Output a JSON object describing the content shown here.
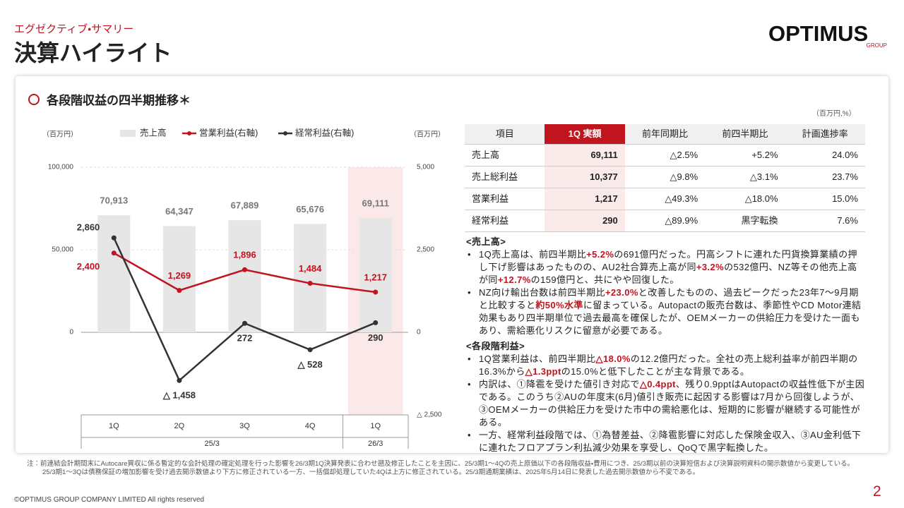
{
  "header": {
    "subtitle": "エグゼクティブ・サマリー",
    "title": "決算ハイライト"
  },
  "logo": {
    "name": "OPTIMUS",
    "group": "GROUP"
  },
  "chart_data": {
    "type": "combo",
    "title": "各段階収益の四半期推移＊",
    "y_label": "（百万円）",
    "y2_label": "（百万円）",
    "categories": [
      "1Q",
      "2Q",
      "3Q",
      "4Q",
      "1Q"
    ],
    "x_groups": [
      "25/3",
      "26/3"
    ],
    "ylim": [
      -50000,
      100000
    ],
    "yticks": [
      0,
      {
        "value": 50000,
        "label": "50,000"
      },
      {
        "value": 100000,
        "label": "100,000"
      }
    ],
    "y2lim": [
      -2500,
      5000
    ],
    "y2ticks": [
      {
        "value": -2500,
        "label": "△ 2,500"
      },
      0,
      {
        "value": 2500,
        "label": "2,500"
      },
      {
        "value": 5000,
        "label": "5,000"
      }
    ],
    "grid": true,
    "series": [
      {
        "name": "売上高",
        "type": "bar",
        "color": "#e6e6e6",
        "values": [
          70913,
          64347,
          67889,
          65676,
          69111
        ],
        "value_labels": [
          "70,913",
          "64,347",
          "67,889",
          "65,676",
          "69,111"
        ]
      },
      {
        "name": "営業利益(右軸)",
        "type": "line",
        "axis": "y2",
        "color": "#c0141e",
        "values": [
          2400,
          1269,
          1896,
          1484,
          1217
        ],
        "value_labels": [
          "2,400",
          "1,269",
          "1,896",
          "1,484",
          "1,217"
        ]
      },
      {
        "name": "経常利益(右軸)",
        "type": "line",
        "axis": "y2",
        "color": "#333333",
        "values": [
          2860,
          -1458,
          272,
          -528,
          290
        ],
        "value_labels": [
          "2,860",
          "△ 1,458",
          "272",
          "△ 528",
          "290"
        ]
      }
    ]
  },
  "table": {
    "unit": "（百万円,%）",
    "header": [
      "項目",
      "1Q 実額",
      "前年同期比",
      "前四半期比",
      "計画進捗率"
    ],
    "rows": [
      [
        "売上高",
        "69,111",
        "△2.5%",
        "+5.2%",
        "24.0%"
      ],
      [
        "売上総利益",
        "10,377",
        "△9.8%",
        "△3.1%",
        "23.7%"
      ],
      [
        "営業利益",
        "1,217",
        "△49.3%",
        "△18.0%",
        "15.0%"
      ],
      [
        "経常利益",
        "290",
        "△89.9%",
        "黒字転換",
        "7.6%"
      ]
    ]
  },
  "text": {
    "sections": [
      {
        "heading": "<売上高>",
        "bullets": [
          [
            "1Q売上高は、前四半期比",
            {
              "text": "+5.2%",
              "em": true
            },
            "の691億円だった。円高シフトに連れた円貨換算業績の押し下げ影響はあったものの、AU2社合算売上高が同",
            {
              "text": "+3.2%",
              "em": true
            },
            "の532億円、NZ等その他売上高が同",
            {
              "text": "+12.7%",
              "em": true
            },
            "の159億円と、共にやや回復した。"
          ],
          [
            "NZ向け輸出台数は前四半期比",
            {
              "text": "+23.0%",
              "em": true
            },
            "と改善したものの、過去ピークだった23年7～9月期と比較すると",
            {
              "text": "約50%水準",
              "em": true
            },
            "に留まっている。Autopactの販売台数は、季節性やCD Motor連結効果もあり四半期単位で過去最高を確保したが、OEMメーカーの供給圧力を受けた一面もあり、需給悪化リスクに留意が必要である。"
          ]
        ]
      },
      {
        "heading": "<各段階利益>",
        "bullets": [
          [
            "1Q営業利益は、前四半期比",
            {
              "text": "△18.0%",
              "em": true
            },
            "の12.2億円だった。全社の売上総利益率が前四半期の16.3%から",
            {
              "text": "△1.3ppt",
              "em": true
            },
            "の15.0%と低下したことが主な背景である。"
          ],
          [
            "内訳は、①降雹を受けた値引き対応で",
            {
              "text": "△0.4ppt",
              "em": true
            },
            "、残り0.9pptはAutopactの収益性低下が主因である。このうち②AUの年度末(6月)値引き販売に起因する影響は7月から回復しようが、③OEMメーカーの供給圧力を受けた市中の需給悪化は、短期的に影響が継続する可能性がある。"
          ],
          [
            "一方、経常利益段階では、①為替差益、②降雹影響に対応した保険金収入、③AU金利低下に連れたフロアプラン利払減少効果を享受し、QoQで黒字転換した。"
          ]
        ]
      }
    ]
  },
  "notes": [
    "注：前連結会計期間末にAutocare買収に係る暫定的な会計処理の確定処理を行った影響を26/3期1Q決算発表に合わせ遡及修正したことを主因に、25/3期1～4Qの売上原価以下の各段階収益・費用につき、25/3期以前の決算短信および決算説明資料の開示数値から変更している。",
    "25/3期1～3Qは債務保証の増加影響を受け過去開示数値より下方に修正されている一方、一括償却処理していた4Qは上方に修正されている。25/3期通期業績は、2025年5月14日に発表した過去開示数値から不変である。"
  ],
  "footer": {
    "copyright": "©OPTIMUS GROUP COMPANY LIMITED All rights reserved",
    "page": "2"
  }
}
